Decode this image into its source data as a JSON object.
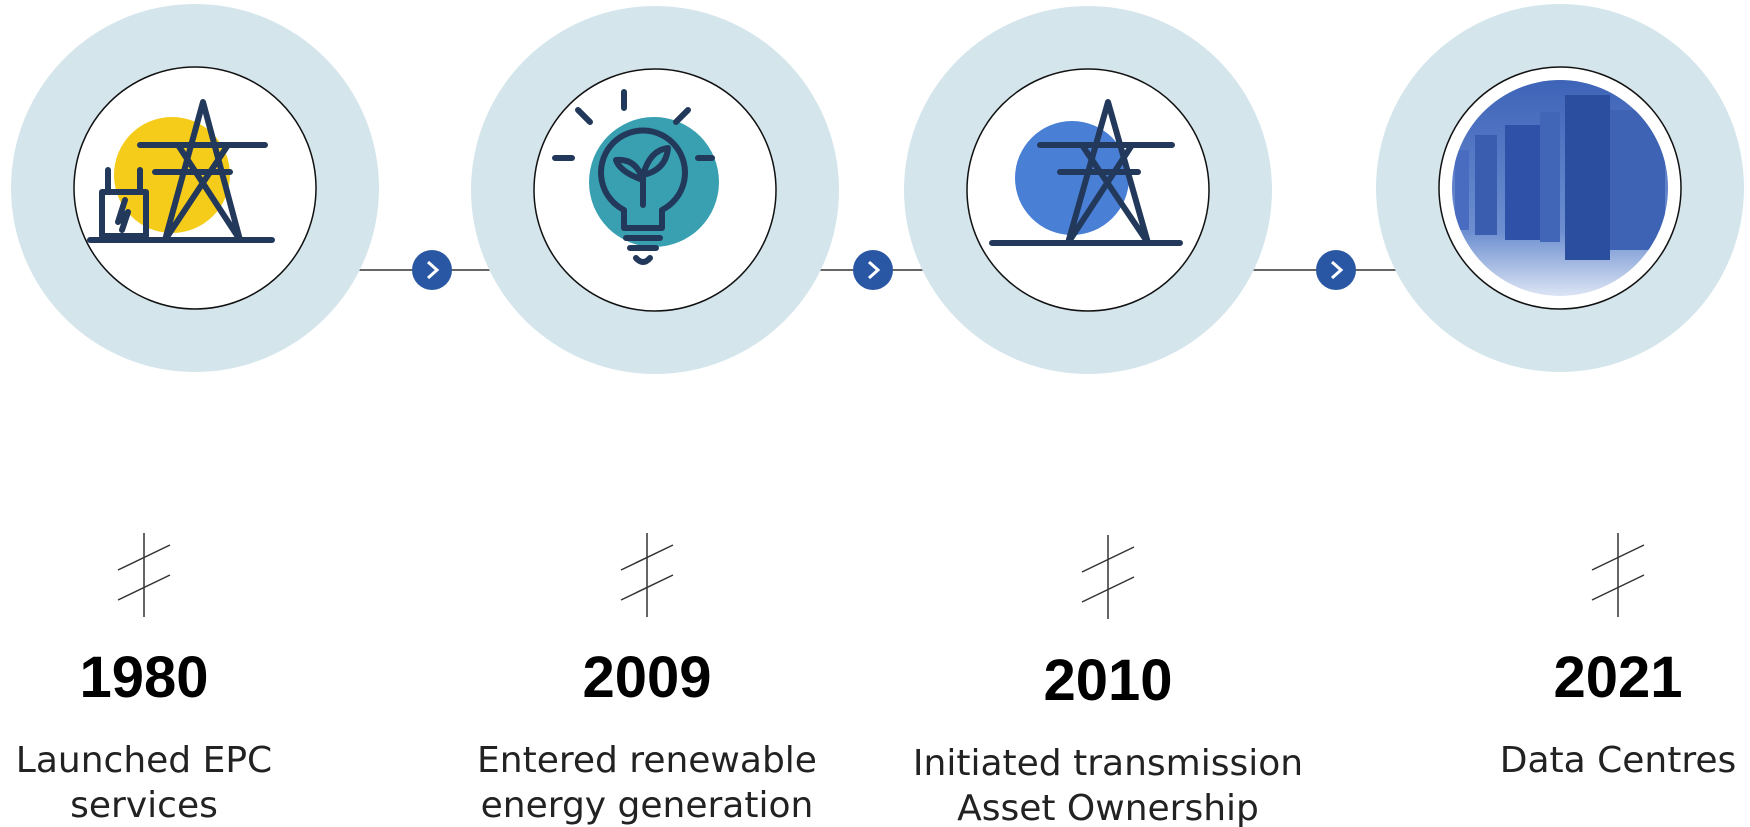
{
  "milestones": [
    {
      "year": "1980",
      "lines": [
        "Launched EPC",
        "services"
      ]
    },
    {
      "year": "2009",
      "lines": [
        "Entered renewable",
        "energy generation"
      ]
    },
    {
      "year": "2010",
      "lines": [
        "Initiated transmission",
        "Asset Ownership"
      ]
    },
    {
      "year": "2021",
      "lines": [
        "Data Centres"
      ]
    }
  ]
}
